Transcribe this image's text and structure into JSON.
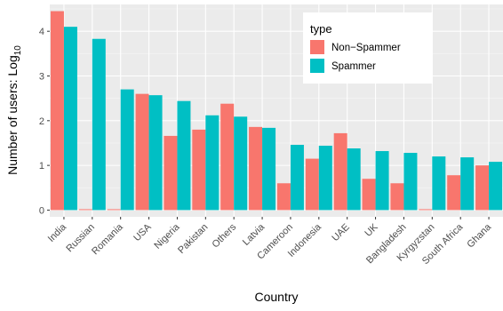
{
  "chart_data": {
    "type": "bar",
    "xlabel": "Country",
    "ylabel": "Number of users: Log",
    "ylabel_subscript": "10",
    "legend_title": "type",
    "legend_position": "top-right",
    "grid": true,
    "ylim": [
      -0.15,
      4.6
    ],
    "y_ticks": [
      "0",
      "1",
      "2",
      "3",
      "4"
    ],
    "categories": [
      "India",
      "Russian",
      "Romania",
      "USA",
      "Nigeria",
      "Pakistan",
      "Others",
      "Latvia",
      "Cameroon",
      "Indonesia",
      "UAE",
      "UK",
      "Bangladesh",
      "Kyrgyzstan",
      "South Africa",
      "Ghana"
    ],
    "series": [
      {
        "name": "Non−Spammer",
        "color": "#F8766D",
        "values": [
          4.45,
          0.02,
          0.02,
          2.6,
          1.66,
          1.8,
          2.38,
          1.86,
          0.6,
          1.15,
          1.72,
          0.7,
          0.6,
          0.02,
          0.78,
          1.0
        ]
      },
      {
        "name": "Spammer",
        "color": "#00BFC4",
        "values": [
          4.1,
          3.83,
          2.7,
          2.57,
          2.44,
          2.12,
          2.09,
          1.84,
          1.46,
          1.44,
          1.38,
          1.32,
          1.28,
          1.2,
          1.18,
          1.08
        ]
      }
    ]
  }
}
